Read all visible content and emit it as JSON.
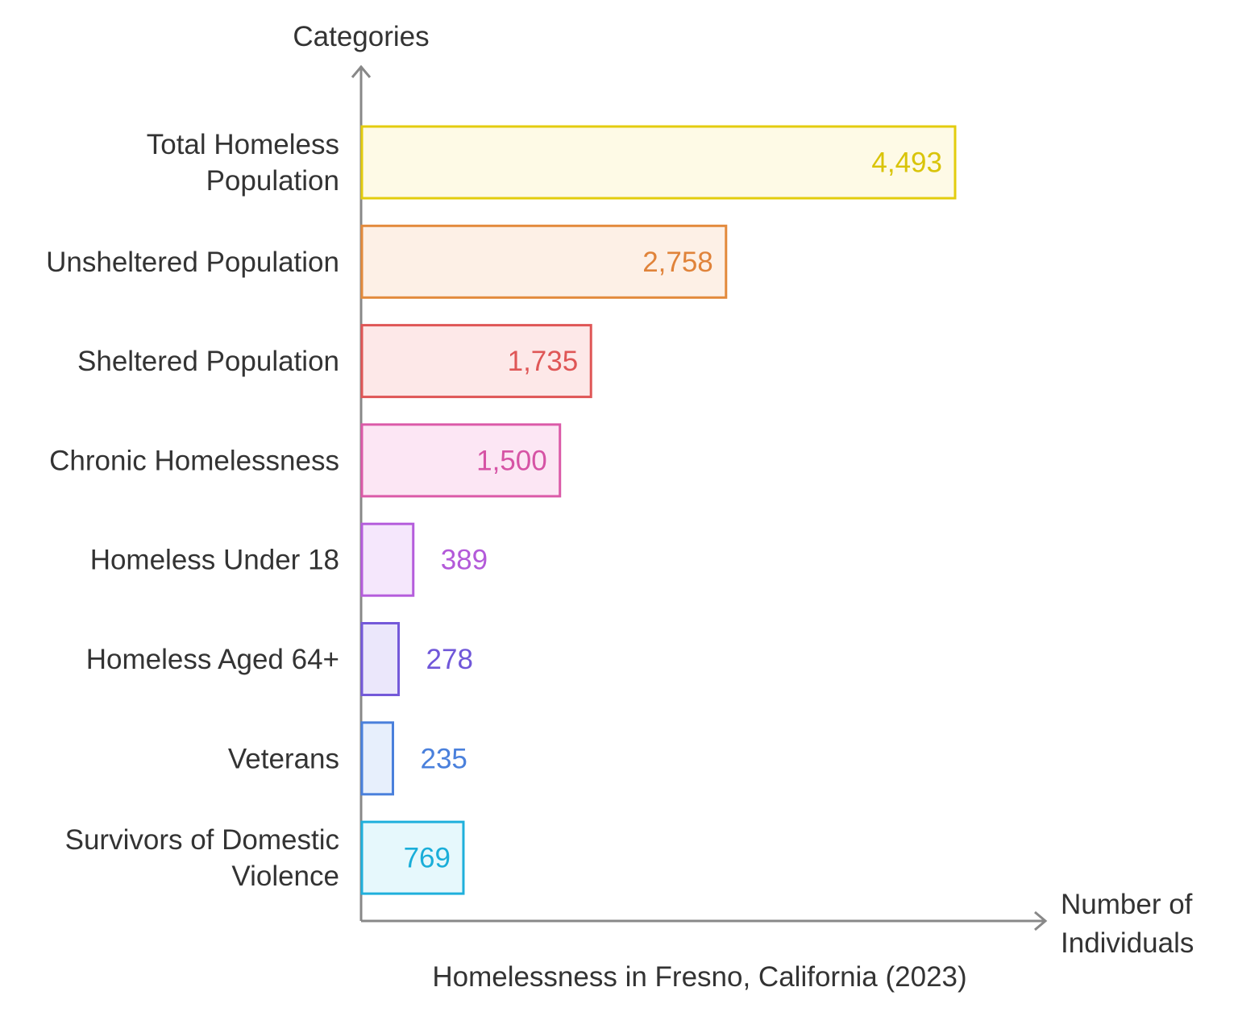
{
  "chart_data": {
    "type": "bar",
    "orientation": "horizontal",
    "title": "Homelessness in Fresno, California (2023)",
    "xlabel": "Number of Individuals",
    "ylabel": "Categories",
    "xlim": [
      0,
      4493
    ],
    "grid": false,
    "categories": [
      "Total Homeless Population",
      "Unsheltered Population",
      "Sheltered Population",
      "Chronic Homelessness",
      "Homeless Under 18",
      "Homeless Aged 64+",
      "Veterans",
      "Survivors of Domestic Violence"
    ],
    "values": [
      4493,
      2758,
      1735,
      1500,
      389,
      278,
      235,
      769
    ],
    "value_labels": [
      "4,493",
      "2,758",
      "1,735",
      "1,500",
      "389",
      "278",
      "235",
      "769"
    ],
    "colors": [
      {
        "stroke": "#e3cc0e",
        "fill": "#fefae6",
        "text": "#d9c40a"
      },
      {
        "stroke": "#e38a3c",
        "fill": "#fdf0e6",
        "text": "#e0833a"
      },
      {
        "stroke": "#df5656",
        "fill": "#fde8e8",
        "text": "#df5656"
      },
      {
        "stroke": "#db5aa8",
        "fill": "#fce6f4",
        "text": "#d653a5"
      },
      {
        "stroke": "#b55ddc",
        "fill": "#f5e7fc",
        "text": "#b35ad9"
      },
      {
        "stroke": "#7459d9",
        "fill": "#ebe7fb",
        "text": "#7057d9"
      },
      {
        "stroke": "#4a80dc",
        "fill": "#e7effc",
        "text": "#4a80dc"
      },
      {
        "stroke": "#1fb0dc",
        "fill": "#e6f8fc",
        "text": "#1aaed9"
      }
    ]
  }
}
